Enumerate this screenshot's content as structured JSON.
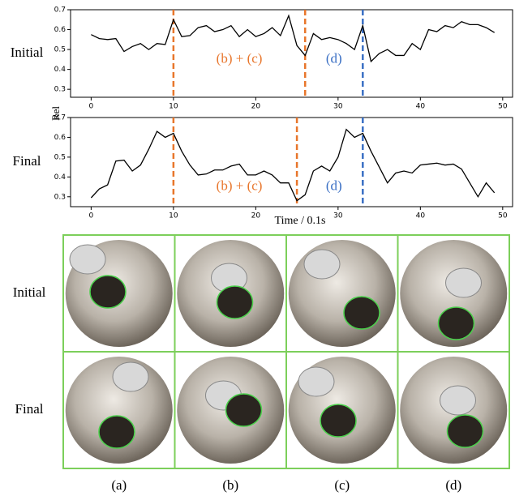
{
  "figure": {
    "ylabel": "Rel",
    "xlabel": "Time / 0.1s"
  },
  "chart_data": [
    {
      "type": "line",
      "label": "Initial",
      "x": [
        0,
        1,
        2,
        3,
        4,
        5,
        6,
        7,
        8,
        9,
        10,
        11,
        12,
        13,
        14,
        15,
        16,
        17,
        18,
        19,
        20,
        21,
        22,
        23,
        24,
        25,
        26,
        27,
        28,
        29,
        30,
        31,
        32,
        33,
        34,
        35,
        36,
        37,
        38,
        39,
        40,
        41,
        42,
        43,
        44,
        45,
        46,
        47,
        48,
        49
      ],
      "series": [
        {
          "color": "#000000",
          "values": [
            0.575,
            0.555,
            0.55,
            0.555,
            0.49,
            0.515,
            0.53,
            0.5,
            0.53,
            0.525,
            0.65,
            0.565,
            0.57,
            0.61,
            0.62,
            0.59,
            0.6,
            0.62,
            0.565,
            0.6,
            0.565,
            0.58,
            0.61,
            0.57,
            0.67,
            0.52,
            0.47,
            0.58,
            0.55,
            0.56,
            0.55,
            0.53,
            0.5,
            0.62,
            0.44,
            0.48,
            0.5,
            0.47,
            0.47,
            0.53,
            0.5,
            0.6,
            0.59,
            0.62,
            0.61,
            0.64,
            0.625,
            0.625,
            0.61,
            0.585
          ]
        }
      ],
      "xlim": [
        -2.5,
        51.2
      ],
      "ylim": [
        0.26,
        0.7
      ],
      "xticks": [
        0,
        10,
        20,
        30,
        40,
        50
      ],
      "yticks": [
        0.3,
        0.4,
        0.5,
        0.6,
        0.7
      ],
      "vlines": [
        {
          "x": 10,
          "color": "#e8762c"
        },
        {
          "x": 26,
          "color": "#e8762c"
        },
        {
          "x": 33,
          "color": "#3a6fc4"
        }
      ],
      "annotations": [
        {
          "text": "(b) + (c)",
          "x": 18,
          "y": 0.45,
          "color": "#e8762c"
        },
        {
          "text": "(d)",
          "x": 29.5,
          "y": 0.45,
          "color": "#3a6fc4"
        }
      ]
    },
    {
      "type": "line",
      "label": "Final",
      "x": [
        0,
        1,
        2,
        3,
        4,
        5,
        6,
        7,
        8,
        9,
        10,
        11,
        12,
        13,
        14,
        15,
        16,
        17,
        18,
        19,
        20,
        21,
        22,
        23,
        24,
        25,
        26,
        27,
        28,
        29,
        30,
        31,
        32,
        33,
        34,
        35,
        36,
        37,
        38,
        39,
        40,
        41,
        42,
        43,
        44,
        45,
        46,
        47,
        48,
        49
      ],
      "series": [
        {
          "color": "#000000",
          "values": [
            0.295,
            0.34,
            0.36,
            0.48,
            0.485,
            0.43,
            0.46,
            0.54,
            0.63,
            0.6,
            0.62,
            0.53,
            0.46,
            0.41,
            0.415,
            0.435,
            0.435,
            0.455,
            0.465,
            0.41,
            0.41,
            0.43,
            0.41,
            0.37,
            0.37,
            0.28,
            0.31,
            0.43,
            0.455,
            0.43,
            0.5,
            0.64,
            0.6,
            0.62,
            0.53,
            0.45,
            0.37,
            0.42,
            0.43,
            0.42,
            0.46,
            0.465,
            0.47,
            0.46,
            0.465,
            0.44,
            0.37,
            0.3,
            0.37,
            0.32
          ]
        }
      ],
      "xlim": [
        -2.5,
        51.2
      ],
      "ylim": [
        0.25,
        0.7
      ],
      "xticks": [
        0,
        10,
        20,
        30,
        40,
        50
      ],
      "yticks": [
        0.3,
        0.4,
        0.5,
        0.6,
        0.7
      ],
      "vlines": [
        {
          "x": 10,
          "color": "#e8762c"
        },
        {
          "x": 25,
          "color": "#e8762c"
        },
        {
          "x": 33,
          "color": "#3a6fc4"
        }
      ],
      "annotations": [
        {
          "text": "(b) + (c)",
          "x": 18,
          "y": 0.35,
          "color": "#e8762c"
        },
        {
          "text": "(d)",
          "x": 29.5,
          "y": 0.35,
          "color": "#3a6fc4"
        }
      ]
    }
  ],
  "images": {
    "rows": [
      "Initial",
      "Final"
    ],
    "columns": [
      "(a)",
      "(b)",
      "(c)",
      "(d)"
    ]
  }
}
